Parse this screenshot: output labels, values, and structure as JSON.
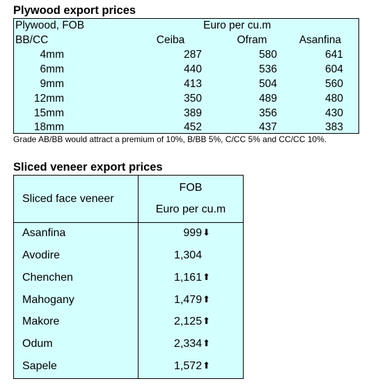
{
  "plywood": {
    "title": "Plywood export prices",
    "header_left_1": "Plywood, FOB",
    "header_unit": "Euro per cu.m",
    "header_left_2": "BB/CC",
    "columns": [
      "Ceiba",
      "Ofram",
      "Asanfina"
    ],
    "rows": [
      {
        "size": "4mm",
        "values": [
          "287",
          "580",
          "641"
        ]
      },
      {
        "size": "6mm",
        "values": [
          "440",
          "536",
          "604"
        ]
      },
      {
        "size": "9mm",
        "values": [
          "413",
          "504",
          "560"
        ]
      },
      {
        "size": "12mm",
        "values": [
          "350",
          "489",
          "480"
        ]
      },
      {
        "size": "15mm",
        "values": [
          "389",
          "356",
          "430"
        ]
      },
      {
        "size": "18mm",
        "values": [
          "452",
          "437",
          "383"
        ]
      }
    ],
    "note": "Grade AB/BB would attract a premium of 10%, B/BB 5%, C/CC 5% and CC/CC 10%."
  },
  "veneer": {
    "title": "Sliced veneer export prices",
    "col1_header": "Sliced face veneer",
    "col2_header_1": "FOB",
    "col2_header_2": "Euro per cu.m",
    "rows": [
      {
        "name": "Asanfina",
        "value": "999",
        "trend": "down"
      },
      {
        "name": "Avodire",
        "value": "1,304",
        "trend": "none"
      },
      {
        "name": "Chenchen",
        "value": "1,161",
        "trend": "up"
      },
      {
        "name": "Mahogany",
        "value": "1,479",
        "trend": "up"
      },
      {
        "name": "Makore",
        "value": "2,125",
        "trend": "up"
      },
      {
        "name": "Odum",
        "value": "2,334",
        "trend": "up"
      },
      {
        "name": "Sapele",
        "value": "1,572",
        "trend": "up"
      }
    ]
  }
}
